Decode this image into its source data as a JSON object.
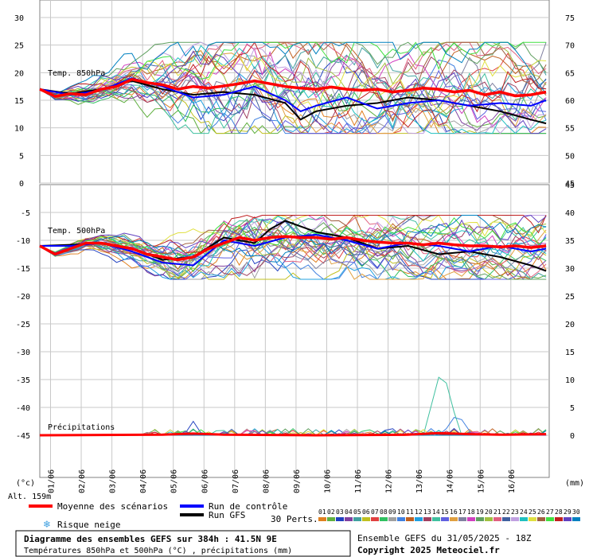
{
  "chart_data": [
    {
      "type": "line",
      "panel": "top",
      "label": "Temp. 850hPa",
      "y_left_ticks": [
        30,
        25,
        20,
        15,
        10,
        5,
        0
      ],
      "y_right_ticks": [
        75,
        70,
        65,
        60,
        55,
        50,
        45
      ],
      "ylim": [
        0,
        30
      ],
      "mean_series": [
        {
          "t": 0,
          "v": 17
        },
        {
          "t": 0.5,
          "v": 15.7
        },
        {
          "t": 1,
          "v": 16.2
        },
        {
          "t": 1.5,
          "v": 16.0
        },
        {
          "t": 2,
          "v": 17.0
        },
        {
          "t": 2.5,
          "v": 17.5
        },
        {
          "t": 3,
          "v": 18.8
        },
        {
          "t": 3.5,
          "v": 18.2
        },
        {
          "t": 4,
          "v": 17.8
        },
        {
          "t": 4.5,
          "v": 17.0
        },
        {
          "t": 5,
          "v": 17.5
        },
        {
          "t": 5.5,
          "v": 17.2
        },
        {
          "t": 6,
          "v": 17.6
        },
        {
          "t": 6.5,
          "v": 18.0
        },
        {
          "t": 7,
          "v": 18.5
        },
        {
          "t": 7.5,
          "v": 18.0
        },
        {
          "t": 8,
          "v": 17.5
        },
        {
          "t": 8.5,
          "v": 17.2
        },
        {
          "t": 9,
          "v": 17.0
        },
        {
          "t": 9.5,
          "v": 17.4
        },
        {
          "t": 10,
          "v": 17.0
        },
        {
          "t": 10.5,
          "v": 16.8
        },
        {
          "t": 11,
          "v": 17.0
        },
        {
          "t": 11.5,
          "v": 16.5
        },
        {
          "t": 12,
          "v": 16.8
        },
        {
          "t": 12.5,
          "v": 17.2
        },
        {
          "t": 13,
          "v": 17.0
        },
        {
          "t": 13.5,
          "v": 16.5
        },
        {
          "t": 14,
          "v": 16.8
        },
        {
          "t": 14.5,
          "v": 16.0
        },
        {
          "t": 15,
          "v": 16.5
        },
        {
          "t": 15.5,
          "v": 15.8
        },
        {
          "t": 16,
          "v": 16.0
        },
        {
          "t": 16.5,
          "v": 16.5
        }
      ],
      "control_series": [
        {
          "t": 0,
          "v": 17
        },
        {
          "t": 1,
          "v": 16.0
        },
        {
          "t": 2,
          "v": 16.8
        },
        {
          "t": 3,
          "v": 19.0
        },
        {
          "t": 4,
          "v": 17.5
        },
        {
          "t": 5,
          "v": 15.5
        },
        {
          "t": 6,
          "v": 16.0
        },
        {
          "t": 7,
          "v": 17.5
        },
        {
          "t": 8,
          "v": 15.0
        },
        {
          "t": 8.5,
          "v": 13.0
        },
        {
          "t": 9,
          "v": 14.0
        },
        {
          "t": 10,
          "v": 15.5
        },
        {
          "t": 11,
          "v": 13.5
        },
        {
          "t": 12,
          "v": 14.5
        },
        {
          "t": 13,
          "v": 15.0
        },
        {
          "t": 14,
          "v": 14.0
        },
        {
          "t": 15,
          "v": 14.5
        },
        {
          "t": 16,
          "v": 14.0
        },
        {
          "t": 16.5,
          "v": 15.0
        }
      ],
      "gfs_series": [
        {
          "t": 0,
          "v": 17
        },
        {
          "t": 1,
          "v": 16.2
        },
        {
          "t": 2,
          "v": 17.0
        },
        {
          "t": 3,
          "v": 18.5
        },
        {
          "t": 4,
          "v": 17.0
        },
        {
          "t": 5,
          "v": 16.0
        },
        {
          "t": 6,
          "v": 16.5
        },
        {
          "t": 7,
          "v": 16.0
        },
        {
          "t": 8,
          "v": 14.5
        },
        {
          "t": 8.5,
          "v": 11.5
        },
        {
          "t": 9,
          "v": 13.0
        },
        {
          "t": 10,
          "v": 14.0
        },
        {
          "t": 11,
          "v": 14.5
        },
        {
          "t": 12,
          "v": 15.5
        },
        {
          "t": 13,
          "v": 15.0
        },
        {
          "t": 14,
          "v": 14.0
        },
        {
          "t": 15,
          "v": 13.0
        },
        {
          "t": 16,
          "v": 11.5
        },
        {
          "t": 16.5,
          "v": 10.8
        }
      ],
      "ensemble_spread": {
        "min": 9,
        "max": 25.5
      }
    },
    {
      "type": "line",
      "panel": "bottom",
      "label": "Temp. 500hPa",
      "y_left_ticks": [
        0,
        -5,
        -10,
        -15,
        -20,
        -25,
        -30,
        -35,
        -40,
        -45
      ],
      "ylim": [
        -45,
        0
      ],
      "mean_series": [
        {
          "t": 0,
          "v": -11
        },
        {
          "t": 0.5,
          "v": -12.5
        },
        {
          "t": 1,
          "v": -11.5
        },
        {
          "t": 1.5,
          "v": -10.5
        },
        {
          "t": 2,
          "v": -10.5
        },
        {
          "t": 2.5,
          "v": -11.0
        },
        {
          "t": 3,
          "v": -11.5
        },
        {
          "t": 3.5,
          "v": -12.5
        },
        {
          "t": 4,
          "v": -13.0
        },
        {
          "t": 4.5,
          "v": -13.5
        },
        {
          "t": 5,
          "v": -13.0
        },
        {
          "t": 5.5,
          "v": -11.5
        },
        {
          "t": 6,
          "v": -10.5
        },
        {
          "t": 6.5,
          "v": -9.5
        },
        {
          "t": 7,
          "v": -10.0
        },
        {
          "t": 7.5,
          "v": -9.5
        },
        {
          "t": 8,
          "v": -9.3
        },
        {
          "t": 8.5,
          "v": -9.5
        },
        {
          "t": 9,
          "v": -9.5
        },
        {
          "t": 9.5,
          "v": -9.8
        },
        {
          "t": 10,
          "v": -9.5
        },
        {
          "t": 10.5,
          "v": -10.0
        },
        {
          "t": 11,
          "v": -10.3
        },
        {
          "t": 11.5,
          "v": -10.5
        },
        {
          "t": 12,
          "v": -10.5
        },
        {
          "t": 12.5,
          "v": -10.8
        },
        {
          "t": 13,
          "v": -10.5
        },
        {
          "t": 13.5,
          "v": -10.8
        },
        {
          "t": 14,
          "v": -11.0
        },
        {
          "t": 14.5,
          "v": -11.0
        },
        {
          "t": 15,
          "v": -11.2
        },
        {
          "t": 15.5,
          "v": -11.0
        },
        {
          "t": 16,
          "v": -11.3
        },
        {
          "t": 16.5,
          "v": -11.0
        }
      ],
      "control_series": [
        {
          "t": 0,
          "v": -11
        },
        {
          "t": 1,
          "v": -11.0
        },
        {
          "t": 2,
          "v": -10.5
        },
        {
          "t": 3,
          "v": -12.0
        },
        {
          "t": 4,
          "v": -14.0
        },
        {
          "t": 5,
          "v": -14.5
        },
        {
          "t": 6,
          "v": -10.0
        },
        {
          "t": 7,
          "v": -11.0
        },
        {
          "t": 8,
          "v": -9.5
        },
        {
          "t": 9,
          "v": -9.0
        },
        {
          "t": 10,
          "v": -10.0
        },
        {
          "t": 11,
          "v": -11.5
        },
        {
          "t": 12,
          "v": -10.5
        },
        {
          "t": 13,
          "v": -11.0
        },
        {
          "t": 14,
          "v": -12.0
        },
        {
          "t": 15,
          "v": -11.0
        },
        {
          "t": 16,
          "v": -12.0
        },
        {
          "t": 16.5,
          "v": -11.5
        }
      ],
      "gfs_series": [
        {
          "t": 0,
          "v": -11
        },
        {
          "t": 1,
          "v": -10.8
        },
        {
          "t": 2,
          "v": -10.5
        },
        {
          "t": 3,
          "v": -11.5
        },
        {
          "t": 4,
          "v": -13.5
        },
        {
          "t": 5,
          "v": -13.0
        },
        {
          "t": 6,
          "v": -9.5
        },
        {
          "t": 7,
          "v": -10.5
        },
        {
          "t": 7.5,
          "v": -8.0
        },
        {
          "t": 8,
          "v": -6.5
        },
        {
          "t": 9,
          "v": -8.5
        },
        {
          "t": 10,
          "v": -9.5
        },
        {
          "t": 11,
          "v": -11.5
        },
        {
          "t": 12,
          "v": -11.0
        },
        {
          "t": 13,
          "v": -12.5
        },
        {
          "t": 14,
          "v": -12.0
        },
        {
          "t": 15,
          "v": -13.0
        },
        {
          "t": 16,
          "v": -14.5
        },
        {
          "t": 16.5,
          "v": -15.5
        }
      ],
      "ensemble_spread": {
        "min": -17,
        "max": -5.5
      }
    },
    {
      "type": "line",
      "panel": "precip",
      "label": "Précipitations",
      "y_right_ticks": [
        45,
        40,
        35,
        30,
        25,
        20,
        15,
        10,
        5,
        0
      ],
      "ylim": [
        0,
        45
      ],
      "peak": {
        "t": 13.1,
        "v": 12.5
      },
      "series_mean": [
        {
          "t": 0,
          "v": 0
        },
        {
          "t": 4,
          "v": 0.1
        },
        {
          "t": 5,
          "v": 0.3
        },
        {
          "t": 6,
          "v": 0.1
        },
        {
          "t": 9,
          "v": 0
        },
        {
          "t": 12,
          "v": 0.1
        },
        {
          "t": 13,
          "v": 0.4
        },
        {
          "t": 14,
          "v": 0.2
        },
        {
          "t": 15,
          "v": 0.1
        },
        {
          "t": 16.5,
          "v": 0.2
        }
      ]
    }
  ],
  "x_axis": {
    "ticks": [
      "01/06",
      "02/06",
      "03/06",
      "04/06",
      "05/06",
      "06/06",
      "07/06",
      "08/06",
      "09/06",
      "10/06",
      "11/06",
      "12/06",
      "13/06",
      "14/06",
      "15/06",
      "16/06"
    ]
  },
  "axis_units": {
    "left": "(°c)",
    "right": "(mm)"
  },
  "altitude": "Alt. 159m",
  "legend": {
    "mean": "Moyenne des scénarios",
    "control": "Run de contrôle",
    "gfs": "Run GFS",
    "snow": "Risque neige",
    "perts_label": "30 Perts.",
    "perts": [
      "01",
      "02",
      "03",
      "04",
      "05",
      "06",
      "07",
      "08",
      "09",
      "10",
      "11",
      "12",
      "13",
      "14",
      "15",
      "16",
      "17",
      "18",
      "19",
      "20",
      "21",
      "22",
      "23",
      "24",
      "25",
      "26",
      "27",
      "28",
      "29",
      "30"
    ],
    "pert_colors": [
      "#e08020",
      "#60b040",
      "#2040c0",
      "#8040a0",
      "#40a0a0",
      "#c0c020",
      "#e04040",
      "#30c060",
      "#a0a0a0",
      "#4080e0",
      "#c06020",
      "#20a0e0",
      "#a04060",
      "#40c0a0",
      "#6060e0",
      "#e0a040",
      "#8080a0",
      "#d040c0",
      "#60a060",
      "#a0c040",
      "#e06080",
      "#4060a0",
      "#c0a0e0",
      "#20c0c0",
      "#e0e040",
      "#a06040",
      "#40e040",
      "#c02020",
      "#6040c0",
      "#0080c0"
    ]
  },
  "colors": {
    "mean": "#ff0000",
    "control": "#0000ff",
    "gfs": "#000000",
    "grid": "#c8c8c8",
    "axis": "#808080"
  },
  "footer": {
    "title": "Diagramme des ensembles GEFS sur 384h : 41.5N 9E",
    "subtitle": "Températures 850hPa et 500hPa (°C) , précipitations (mm)",
    "run": "Ensemble GEFS du 31/05/2025 - 18Z",
    "copyright": "Copyright 2025 Meteociel.fr"
  }
}
